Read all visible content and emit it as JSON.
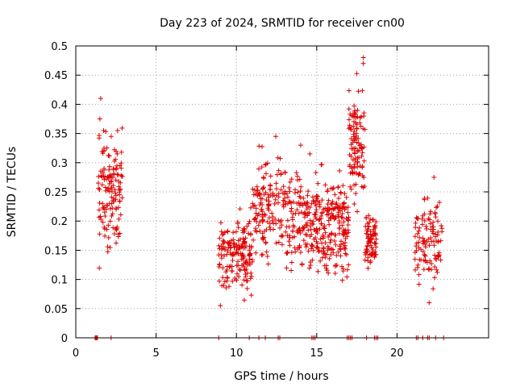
{
  "chart_data": {
    "type": "scatter",
    "title": "Day 223 of 2024, SRMTID for receiver cn00",
    "xlabel": "GPS time / hours",
    "ylabel": "SRMTID / TECUs",
    "xlim": [
      0,
      25.7
    ],
    "ylim": [
      0,
      0.5
    ],
    "xticks": [
      0,
      5,
      10,
      15,
      20
    ],
    "xtick_labels": [
      "0",
      "5",
      "10",
      "15",
      "20"
    ],
    "yticks": [
      0,
      0.05,
      0.1,
      0.15,
      0.2,
      0.25,
      0.3,
      0.35,
      0.4,
      0.45,
      0.5
    ],
    "ytick_labels": [
      "0",
      "0.05",
      "0.1",
      "0.15",
      "0.2",
      "0.25",
      "0.3",
      "0.35",
      "0.4",
      "0.45",
      "0.5"
    ],
    "grid": true,
    "legend": "none",
    "marker": "+",
    "color": "#e00000",
    "clusters": [
      {
        "x0": 1.4,
        "x1": 2.9,
        "ymin": 0.11,
        "ymax": 0.41,
        "n": 140
      },
      {
        "x0": 8.9,
        "x1": 11.0,
        "ymin": 0.055,
        "ymax": 0.23,
        "n": 170
      },
      {
        "x0": 11.0,
        "x1": 13.3,
        "ymin": 0.1,
        "ymax": 0.345,
        "n": 160
      },
      {
        "x0": 13.3,
        "x1": 15.4,
        "ymin": 0.075,
        "ymax": 0.33,
        "n": 170
      },
      {
        "x0": 15.4,
        "x1": 17.0,
        "ymin": 0.07,
        "ymax": 0.31,
        "n": 160
      },
      {
        "x0": 17.0,
        "x1": 18.0,
        "ymin": 0.19,
        "ymax": 0.48,
        "n": 110
      },
      {
        "x0": 18.0,
        "x1": 18.7,
        "ymin": 0.1,
        "ymax": 0.23,
        "n": 80
      },
      {
        "x0": 21.1,
        "x1": 22.8,
        "ymin": 0.06,
        "ymax": 0.275,
        "n": 110
      }
    ],
    "peaks": [
      {
        "x": 1.55,
        "y": 0.41
      },
      {
        "x": 1.5,
        "y": 0.375
      },
      {
        "x": 2.6,
        "y": 0.355
      },
      {
        "x": 9.0,
        "y": 0.055
      },
      {
        "x": 12.45,
        "y": 0.345
      },
      {
        "x": 14.0,
        "y": 0.33
      },
      {
        "x": 17.9,
        "y": 0.48
      },
      {
        "x": 17.9,
        "y": 0.47
      },
      {
        "x": 22.3,
        "y": 0.275
      },
      {
        "x": 22.0,
        "y": 0.06
      }
    ],
    "zero_markers": [
      1.2,
      1.25,
      1.3,
      1.35,
      2.2,
      8.9,
      10.8,
      11.4,
      11.8,
      12.6,
      12.7,
      14.7,
      14.8,
      14.9,
      16.9,
      17.0,
      17.1,
      17.2,
      18.1,
      18.6,
      18.7,
      18.8,
      21.2,
      21.3,
      21.6,
      21.9,
      22.0,
      22.4,
      22.9
    ]
  }
}
